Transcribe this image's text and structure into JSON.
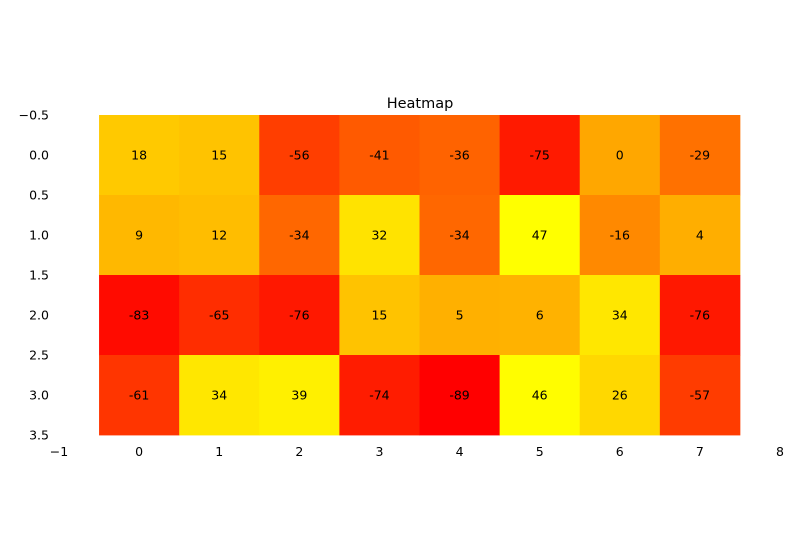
{
  "chart_data": {
    "type": "heatmap",
    "title": "Heatmap",
    "xlabel": "",
    "ylabel": "",
    "colormap": "autumn",
    "color_low": "#ff0000",
    "color_high": "#ffff00",
    "value_range": [
      -89,
      47
    ],
    "xlim": [
      -1,
      8
    ],
    "ylim": [
      3.5,
      -0.5
    ],
    "x_ticks": [
      "−1",
      "0",
      "1",
      "2",
      "3",
      "4",
      "5",
      "6",
      "7",
      "8"
    ],
    "y_ticks": [
      "−0.5",
      "0.0",
      "0.5",
      "1.0",
      "1.5",
      "2.0",
      "2.5",
      "3.0",
      "3.5"
    ],
    "grid": false,
    "show_frame": false,
    "rows": [
      0,
      1,
      2,
      3
    ],
    "columns": [
      0,
      1,
      2,
      3,
      4,
      5,
      6,
      7
    ],
    "values": [
      [
        18,
        15,
        -56,
        -41,
        -36,
        -75,
        0,
        -29
      ],
      [
        9,
        12,
        -34,
        32,
        -34,
        47,
        -16,
        4
      ],
      [
        -83,
        -65,
        -76,
        15,
        5,
        6,
        34,
        -76
      ],
      [
        -61,
        34,
        39,
        -74,
        -89,
        46,
        26,
        -57
      ]
    ]
  }
}
